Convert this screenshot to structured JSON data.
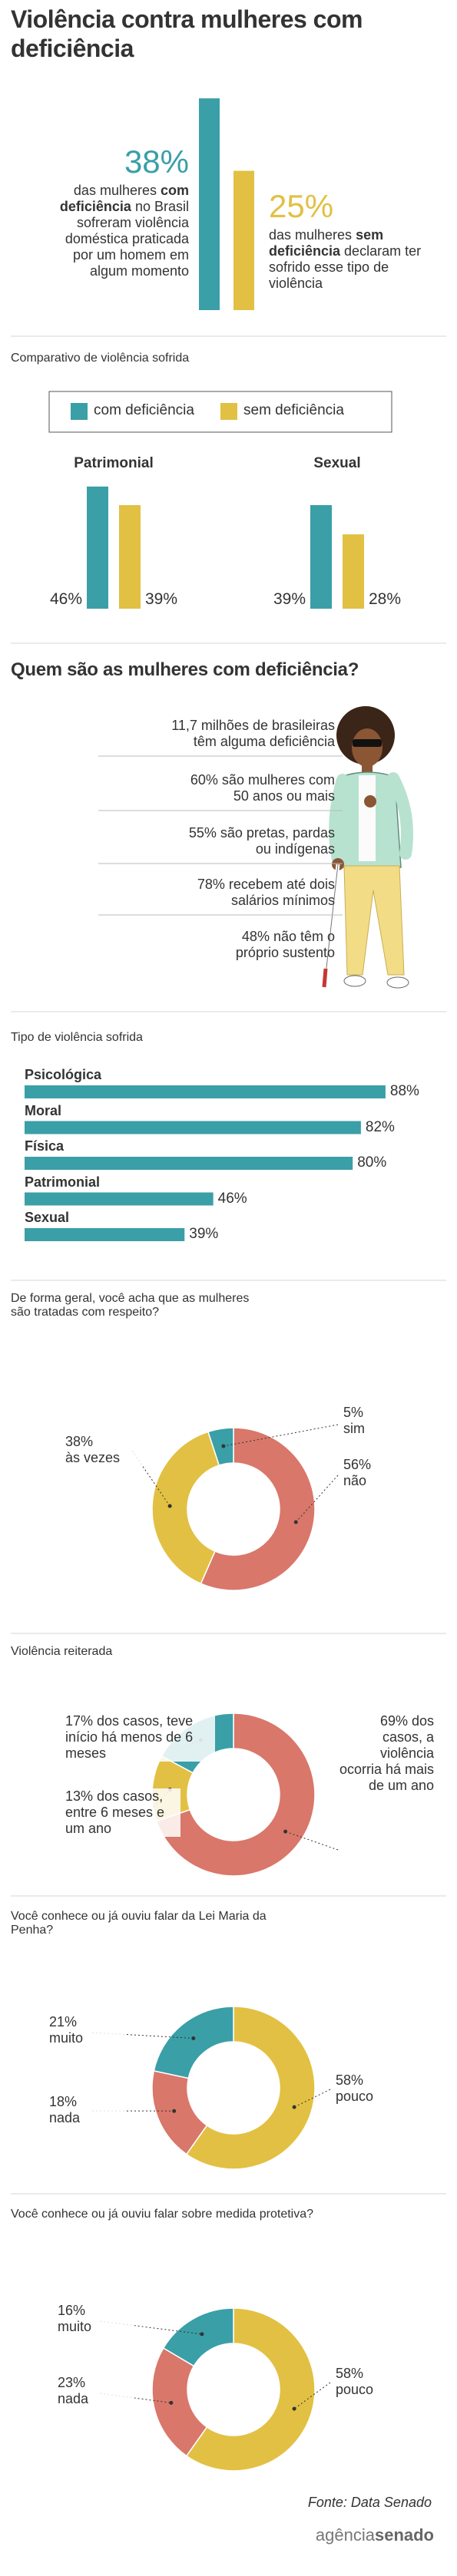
{
  "header": {
    "title": "Violência contra mulheres com deficiência"
  },
  "chart_data": [
    {
      "type": "bar",
      "values": [
        38,
        25
      ],
      "value_labels": [
        "38%",
        "25%"
      ],
      "colors": [
        "#3a9fa7",
        "#e2c043"
      ],
      "descriptions": [
        [
          "das mulheres ",
          "com deficiência",
          " no Brasil sofreram violência doméstica praticada por um homem em algum momento"
        ],
        [
          "das mulheres ",
          "sem deficiência",
          " declaram ter sofrido esse tipo de violência"
        ]
      ]
    },
    {
      "type": "bar",
      "title": "Comparativo de violência sofrida",
      "categories": [
        "Patrimonial",
        "Sexual"
      ],
      "series": [
        {
          "name": "com deficiência",
          "color": "#3a9fa7",
          "values": [
            46,
            39
          ],
          "value_labels": [
            "46%",
            "39%"
          ]
        },
        {
          "name": "sem deficiência",
          "color": "#e2c043",
          "values": [
            39,
            28
          ],
          "value_labels": [
            "39%",
            "28%"
          ]
        }
      ]
    },
    {
      "type": "barh",
      "title": "Tipo de violência sofrida",
      "categories": [
        "Psicológica",
        "Moral",
        "Física",
        "Patrimonial",
        "Sexual"
      ],
      "values": [
        88,
        82,
        80,
        46,
        39
      ],
      "value_labels": [
        "88%",
        "82%",
        "80%",
        "46%",
        "39%"
      ],
      "color": "#3a9fa7"
    },
    {
      "type": "donut",
      "title": "De forma geral, você acha que as mulheres são tratadas com respeito?",
      "categories": [
        "não",
        "às vezes",
        "sim"
      ],
      "values": [
        56,
        38,
        5
      ],
      "value_labels": [
        "56%",
        "38%",
        "5%"
      ],
      "colors": [
        "#d9776a",
        "#e2c043",
        "#3a9fa7"
      ]
    },
    {
      "type": "donut",
      "title": "Violência reiterada",
      "categories": [
        "dos casos, a violência ocorria há mais de um ano",
        "dos casos, entre 6 meses e um ano",
        "dos casos, teve início há menos de 6 meses"
      ],
      "values": [
        69,
        13,
        17
      ],
      "value_labels": [
        "69%",
        "13%",
        "17%"
      ],
      "colors": [
        "#d9776a",
        "#e2c043",
        "#3a9fa7"
      ]
    },
    {
      "type": "donut",
      "title": "Você conhece ou já ouviu falar da Lei Maria da Penha?",
      "categories": [
        "pouco",
        "nada",
        "muito"
      ],
      "values": [
        58,
        18,
        21
      ],
      "value_labels": [
        "58%",
        "18%",
        "21%"
      ],
      "colors": [
        "#e2c043",
        "#d9776a",
        "#3a9fa7"
      ]
    },
    {
      "type": "donut",
      "title": "Você conhece ou já ouviu falar sobre medida protetiva?",
      "categories": [
        "pouco",
        "nada",
        "muito"
      ],
      "values": [
        58,
        23,
        16
      ],
      "value_labels": [
        "58%",
        "23%",
        "16%"
      ],
      "colors": [
        "#e2c043",
        "#d9776a",
        "#3a9fa7"
      ]
    }
  ],
  "profile": {
    "title": "Quem são as mulheres com deficiência?",
    "items": [
      [
        "11,7 milhões de brasileiras",
        "têm alguma deficiência"
      ],
      [
        "60% são mulheres com",
        "50 anos ou mais"
      ],
      [
        "55% são pretas, pardas",
        "ou indígenas"
      ],
      [
        "78% recebem até dois",
        "salários mínimos"
      ],
      [
        "48% não têm o",
        "próprio sustento"
      ]
    ]
  },
  "source": "Fonte: Data Senado",
  "logo": [
    "agência",
    "senado"
  ]
}
